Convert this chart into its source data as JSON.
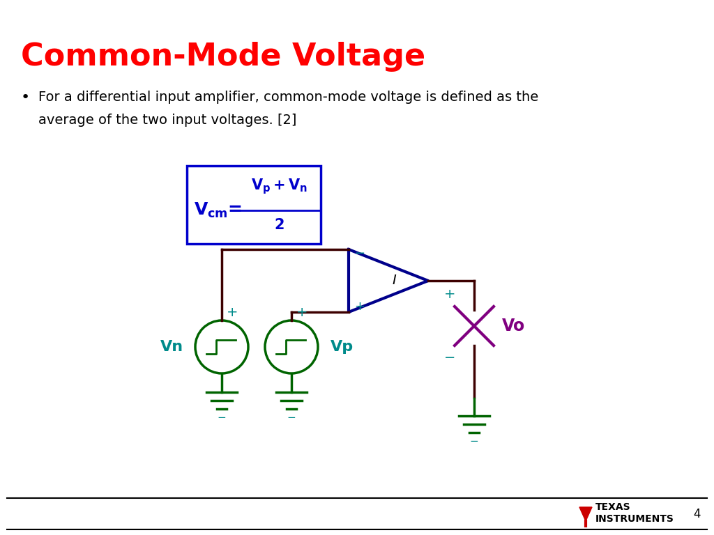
{
  "title": "Common-Mode Voltage",
  "title_color": "#FF0000",
  "title_fontsize": 32,
  "bullet_text_line1": "For a differential input amplifier, common-mode voltage is defined as the",
  "bullet_text_line2": "average of the two input voltages. [2]",
  "background_color": "#FFFFFF",
  "formula_color": "#0000CC",
  "wire_color": "#3D0000",
  "circuit_green": "#006400",
  "circuit_teal": "#008B8B",
  "opamp_color": "#00008B",
  "load_color": "#800080",
  "page_number": "4",
  "footer_text1": "TEXAS",
  "footer_text2": "INSTRUMENTS",
  "ti_red": "#CC0000"
}
